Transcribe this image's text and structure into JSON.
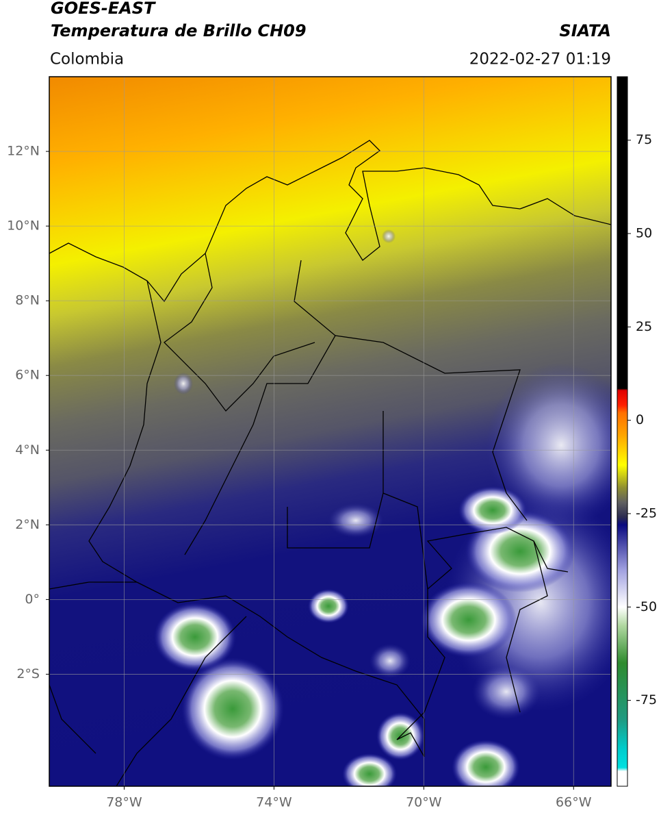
{
  "header": {
    "source": "GOES-EAST",
    "title": "Temperatura de Brillo CH09",
    "agency": "SIATA",
    "region": "Colombia",
    "timestamp": "2022-02-27 01:19"
  },
  "map": {
    "lon_lim": [
      -80,
      -65
    ],
    "lat_lim": [
      -5,
      14
    ],
    "lon_ticks": [
      {
        "value": -78,
        "label": "78°W"
      },
      {
        "value": -74,
        "label": "74°W"
      },
      {
        "value": -70,
        "label": "70°W"
      },
      {
        "value": -66,
        "label": "66°W"
      }
    ],
    "lat_ticks": [
      {
        "value": 12,
        "label": "12°N"
      },
      {
        "value": 10,
        "label": "10°N"
      },
      {
        "value": 8,
        "label": "8°N"
      },
      {
        "value": 6,
        "label": "6°N"
      },
      {
        "value": 4,
        "label": "4°N"
      },
      {
        "value": 2,
        "label": "2°N"
      },
      {
        "value": 0,
        "label": "0°"
      },
      {
        "value": -2,
        "label": "2°S"
      }
    ],
    "grid": true,
    "colorbar": {
      "lim": [
        -98,
        92
      ],
      "ticks": [
        75,
        50,
        25,
        0,
        -25,
        -50,
        -75
      ],
      "colormap": [
        {
          "value": -98,
          "color": "#ffffff"
        },
        {
          "value": -94,
          "color": "#ffffff"
        },
        {
          "value": -93,
          "color": "#00e0e0"
        },
        {
          "value": -88,
          "color": "#00cccc"
        },
        {
          "value": -80,
          "color": "#209a80"
        },
        {
          "value": -65,
          "color": "#2e8b2e"
        },
        {
          "value": -55,
          "color": "#b0d8a0"
        },
        {
          "value": -50,
          "color": "#ffffff"
        },
        {
          "value": -40,
          "color": "#a0a0e0"
        },
        {
          "value": -28,
          "color": "#0a0a80"
        },
        {
          "value": -26,
          "color": "#2a2a50"
        },
        {
          "value": -22,
          "color": "#606060"
        },
        {
          "value": -18,
          "color": "#909030"
        },
        {
          "value": -12,
          "color": "#ffff00"
        },
        {
          "value": -4,
          "color": "#ffa500"
        },
        {
          "value": 2,
          "color": "#ff7000"
        },
        {
          "value": 4,
          "color": "#ff2000"
        },
        {
          "value": 8,
          "color": "#e00000"
        },
        {
          "value": 8.5,
          "color": "#000000"
        },
        {
          "value": 92,
          "color": "#000000"
        }
      ]
    }
  }
}
